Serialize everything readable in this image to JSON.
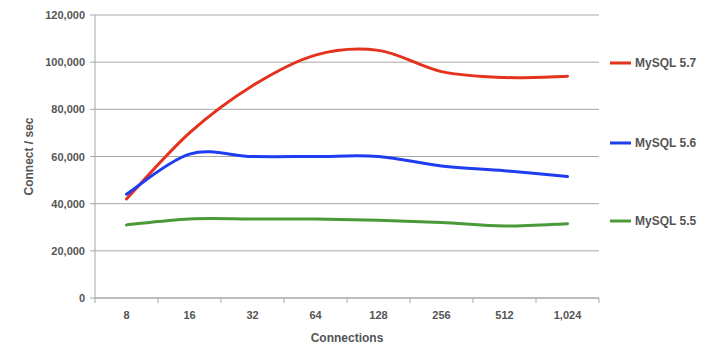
{
  "chart_data": {
    "type": "line",
    "x_label": "Connections",
    "y_label": "Connect / sec",
    "categories": [
      "8",
      "16",
      "32",
      "64",
      "128",
      "256",
      "512",
      "1,024"
    ],
    "series": [
      {
        "name": "MySQL 5.7",
        "color": "#e5321c",
        "values": [
          42000,
          70000,
          90000,
          103000,
          105000,
          96000,
          93500,
          94000
        ]
      },
      {
        "name": "MySQL 5.6",
        "color": "#1e3cf0",
        "values": [
          44000,
          61000,
          60000,
          60000,
          60000,
          56000,
          54000,
          51500
        ]
      },
      {
        "name": "MySQL 5.5",
        "color": "#4a9a3a",
        "values": [
          31000,
          33500,
          33500,
          33500,
          33000,
          32000,
          30500,
          31500
        ]
      }
    ],
    "ylim": [
      0,
      120000
    ],
    "yticks": [
      0,
      {
        "value": 20000,
        "label": "20,000"
      },
      {
        "value": 40000,
        "label": "40,000"
      },
      {
        "value": 60000,
        "label": "60,000"
      },
      {
        "value": 80000,
        "label": "80,000"
      },
      {
        "value": 100000,
        "label": "100,000"
      },
      {
        "value": 120000,
        "label": "120,000"
      }
    ],
    "grid": true,
    "legend": "right"
  }
}
